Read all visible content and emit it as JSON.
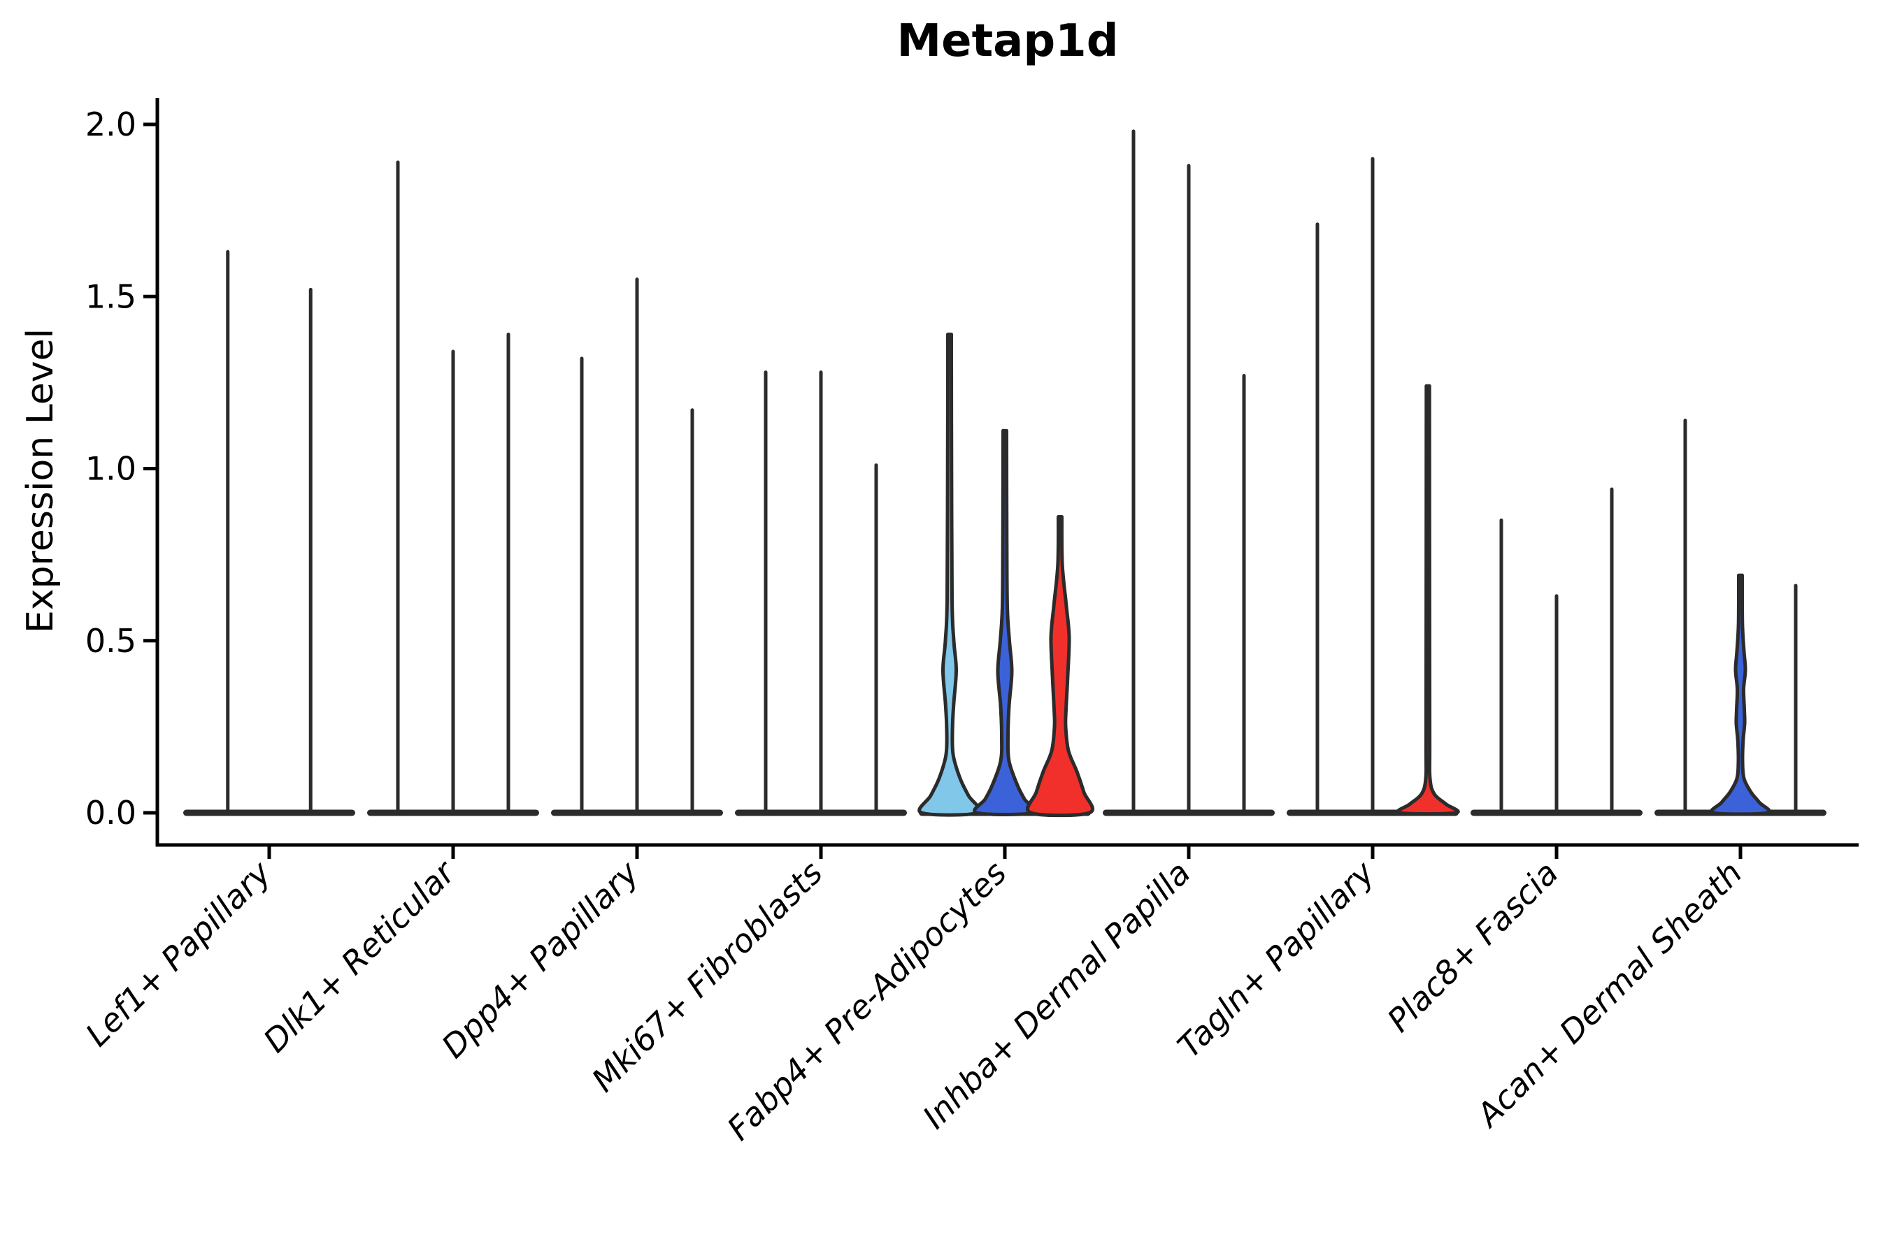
{
  "chart_data": {
    "type": "violin",
    "title": "Metap1d",
    "ylabel": "Expression Level",
    "xlabel": "",
    "grid": false,
    "legend": "none",
    "background_color": "#ffffff",
    "axis_color": "#000000",
    "violin_outline": "#2b2b2b",
    "ylim": [
      0.0,
      2.08
    ],
    "yticks": [
      "0.0",
      "0.5",
      "1.0",
      "1.5",
      "2.0"
    ],
    "ytick_values": [
      0.0,
      0.5,
      1.0,
      1.5,
      2.0
    ],
    "palette": {
      "light_blue": "#80C7E9",
      "royal_blue": "#3B62D8",
      "red": "#F2302B"
    },
    "categories": [
      "Lef1+ Papillary",
      "Dlk1+ Reticular",
      "Dpp4+ Papillary",
      "Mki67+ Fibroblasts",
      "Fabp4+ Pre-Adipocytes",
      "Inhba+ Dermal Papilla",
      "Tagln+ Papillary",
      "Plac8+ Fascia",
      "Acan+ Dermal Sheath"
    ],
    "groups": [
      {
        "category": "Lef1+ Papillary",
        "violins": [
          {
            "max": 1.63
          },
          {
            "max": 1.52
          }
        ]
      },
      {
        "category": "Dlk1+ Reticular",
        "violins": [
          {
            "max": 1.89
          },
          {
            "max": 1.34
          },
          {
            "max": 1.39
          }
        ]
      },
      {
        "category": "Dpp4+ Papillary",
        "violins": [
          {
            "max": 1.32
          },
          {
            "max": 1.55
          },
          {
            "max": 1.17
          }
        ]
      },
      {
        "category": "Mki67+ Fibroblasts",
        "violins": [
          {
            "max": 1.28
          },
          {
            "max": 1.28
          },
          {
            "max": 1.01
          }
        ]
      },
      {
        "category": "Fabp4+ Pre-Adipocytes",
        "violins": [
          {
            "max": 1.39,
            "fill": "#80C7E9",
            "profile": [
              [
                1.39,
                2.5
              ],
              [
                1.0,
                2.8
              ],
              [
                0.62,
                3.5
              ],
              [
                0.5,
                6.0
              ],
              [
                0.415,
                9.5
              ],
              [
                0.32,
                6.0
              ],
              [
                0.25,
                4.2
              ],
              [
                0.17,
                5.0
              ],
              [
                0.1,
                15.0
              ],
              [
                0.05,
                27.0
              ],
              [
                0.0,
                40.0
              ]
            ]
          },
          {
            "max": 1.11,
            "fill": "#3B62D8",
            "profile": [
              [
                1.11,
                2.5
              ],
              [
                0.8,
                2.8
              ],
              [
                0.6,
                3.5
              ],
              [
                0.5,
                6.5
              ],
              [
                0.41,
                10.0
              ],
              [
                0.31,
                6.0
              ],
              [
                0.22,
                4.5
              ],
              [
                0.15,
                6.0
              ],
              [
                0.08,
                18.0
              ],
              [
                0.04,
                28.0
              ],
              [
                0.0,
                40.0
              ]
            ]
          },
          {
            "max": 0.86,
            "fill": "#F2302B",
            "profile": [
              [
                0.86,
                2.5
              ],
              [
                0.72,
                3.2
              ],
              [
                0.6,
                9.0
              ],
              [
                0.51,
                13.0
              ],
              [
                0.4,
                11.0
              ],
              [
                0.3,
                8.5
              ],
              [
                0.25,
                8.0
              ],
              [
                0.18,
                12.0
              ],
              [
                0.12,
                24.0
              ],
              [
                0.06,
                34.0
              ],
              [
                0.0,
                42.0
              ]
            ]
          }
        ]
      },
      {
        "category": "Inhba+ Dermal Papilla",
        "violins": [
          {
            "max": 1.98
          },
          {
            "max": 1.88
          },
          {
            "max": 1.27
          }
        ]
      },
      {
        "category": "Tagln+ Papillary",
        "violins": [
          {
            "max": 1.71
          },
          {
            "max": 1.9
          },
          {
            "max": 1.24,
            "fill": "#F2302B",
            "profile": [
              [
                1.24,
                2.2
              ],
              [
                0.6,
                2.4
              ],
              [
                0.2,
                2.6
              ],
              [
                0.1,
                3.0
              ],
              [
                0.055,
                9.0
              ],
              [
                0.025,
                26.0
              ],
              [
                0.0,
                40.0
              ]
            ]
          }
        ]
      },
      {
        "category": "Plac8+ Fascia",
        "violins": [
          {
            "max": 0.85
          },
          {
            "max": 0.63
          },
          {
            "max": 0.94
          }
        ]
      },
      {
        "category": "Acan+ Dermal Sheath",
        "violins": [
          {
            "max": 1.14
          },
          {
            "max": 0.69,
            "fill": "#3B62D8",
            "profile": [
              [
                0.69,
                2.5
              ],
              [
                0.55,
                2.8
              ],
              [
                0.47,
                5.0
              ],
              [
                0.415,
                7.0
              ],
              [
                0.36,
                4.5
              ],
              [
                0.3,
                5.5
              ],
              [
                0.26,
                6.0
              ],
              [
                0.21,
                3.8
              ],
              [
                0.15,
                3.0
              ],
              [
                0.1,
                5.0
              ],
              [
                0.06,
                15.0
              ],
              [
                0.03,
                27.0
              ],
              [
                0.0,
                38.0
              ]
            ]
          },
          {
            "max": 0.66
          }
        ]
      }
    ]
  }
}
